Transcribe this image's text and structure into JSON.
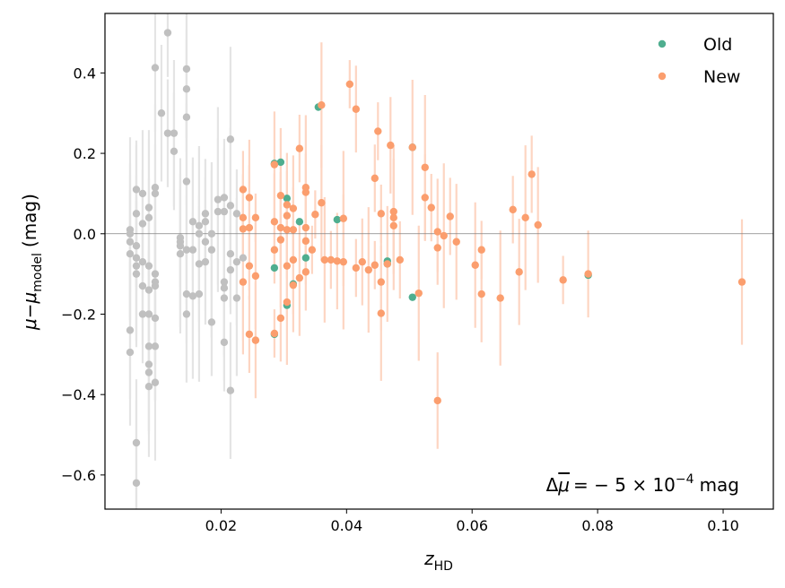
{
  "chart_data": {
    "type": "scatter",
    "xlabel": "z",
    "xlabel_sub": "HD",
    "ylabel_mu": "μ",
    "ylabel_minus": "−",
    "ylabel_model": "model",
    "ylabel_unit": "(mag)",
    "xlim": [
      0.0015,
      0.108
    ],
    "ylim": [
      -0.685,
      0.548
    ],
    "xticks": [
      0.02,
      0.04,
      0.06,
      0.08,
      0.1
    ],
    "xtick_labels": [
      "0.02",
      "0.04",
      "0.06",
      "0.08",
      "0.10"
    ],
    "yticks": [
      -0.6,
      -0.4,
      -0.2,
      0.0,
      0.2,
      0.4
    ],
    "ytick_labels": [
      "−0.6",
      "−0.4",
      "−0.2",
      "0.0",
      "0.2",
      "0.4"
    ],
    "reference_line_y": 0.0,
    "grid": false,
    "legend_position": "top-right",
    "annotation": {
      "delta": "Δ",
      "mu": "μ",
      "eq": "= − 5 × 10",
      "exp": "−4",
      "unit": "mag"
    },
    "colors": {
      "old": "#4fae8f",
      "new": "#fb9e6e",
      "low_z": "#c0c0c0",
      "new_err": "#fdd5c2",
      "low_err": "#e4e4e4",
      "zero_line": "#808080"
    },
    "series": [
      {
        "name": "Old",
        "color": "#4fae8f",
        "points": [
          [
            0.0355,
            0.315
          ],
          [
            0.0505,
            0.215
          ],
          [
            0.0285,
            -0.25
          ],
          [
            0.0505,
            -0.158
          ],
          [
            0.0465,
            -0.075
          ],
          [
            0.0465,
            -0.068
          ],
          [
            0.0785,
            -0.103
          ],
          [
            0.0285,
            0.175
          ],
          [
            0.0295,
            0.178
          ],
          [
            0.0305,
            0.088
          ],
          [
            0.0325,
            0.03
          ],
          [
            0.0385,
            0.035
          ],
          [
            0.0315,
            -0.125
          ],
          [
            0.0305,
            -0.178
          ],
          [
            0.0285,
            -0.085
          ],
          [
            0.0335,
            -0.06
          ]
        ]
      },
      {
        "name": "New",
        "color": "#fb9e6e",
        "points": [
          [
            0.0405,
            0.372
          ],
          [
            0.0415,
            0.31
          ],
          [
            0.036,
            0.32
          ],
          [
            0.045,
            0.255
          ],
          [
            0.047,
            0.22
          ],
          [
            0.0505,
            0.215
          ],
          [
            0.0325,
            0.212
          ],
          [
            0.0285,
            0.172
          ],
          [
            0.0525,
            0.165
          ],
          [
            0.0235,
            0.11
          ],
          [
            0.0245,
            0.09
          ],
          [
            0.0255,
            0.04
          ],
          [
            0.0235,
            0.04
          ],
          [
            0.0245,
            0.015
          ],
          [
            0.0235,
            0.012
          ],
          [
            0.0285,
            0.03
          ],
          [
            0.0295,
            0.095
          ],
          [
            0.0305,
            0.072
          ],
          [
            0.0315,
            0.063
          ],
          [
            0.0335,
            0.115
          ],
          [
            0.0335,
            0.103
          ],
          [
            0.036,
            0.077
          ],
          [
            0.035,
            0.048
          ],
          [
            0.0335,
            0.015
          ],
          [
            0.0305,
            0.045
          ],
          [
            0.0315,
            0.01
          ],
          [
            0.0295,
            0.015
          ],
          [
            0.0295,
            -0.015
          ],
          [
            0.0285,
            -0.04
          ],
          [
            0.0305,
            -0.08
          ],
          [
            0.0315,
            -0.065
          ],
          [
            0.0335,
            -0.095
          ],
          [
            0.0325,
            -0.11
          ],
          [
            0.0345,
            -0.04
          ],
          [
            0.0335,
            -0.018
          ],
          [
            0.0365,
            -0.065
          ],
          [
            0.0375,
            -0.065
          ],
          [
            0.0385,
            -0.068
          ],
          [
            0.0395,
            0.038
          ],
          [
            0.0445,
            0.138
          ],
          [
            0.0475,
            0.055
          ],
          [
            0.0475,
            0.04
          ],
          [
            0.0485,
            -0.065
          ],
          [
            0.0465,
            -0.075
          ],
          [
            0.0445,
            -0.078
          ],
          [
            0.0425,
            -0.07
          ],
          [
            0.0435,
            -0.09
          ],
          [
            0.0415,
            -0.085
          ],
          [
            0.0455,
            -0.12
          ],
          [
            0.0455,
            -0.198
          ],
          [
            0.0245,
            -0.08
          ],
          [
            0.0255,
            -0.105
          ],
          [
            0.0235,
            -0.12
          ],
          [
            0.0245,
            -0.25
          ],
          [
            0.0255,
            -0.265
          ],
          [
            0.0285,
            -0.248
          ],
          [
            0.0295,
            -0.21
          ],
          [
            0.0305,
            -0.17
          ],
          [
            0.0315,
            -0.128
          ],
          [
            0.0545,
            -0.415
          ],
          [
            0.0515,
            -0.148
          ],
          [
            0.0535,
            0.065
          ],
          [
            0.0545,
            0.005
          ],
          [
            0.0555,
            -0.005
          ],
          [
            0.0565,
            0.043
          ],
          [
            0.0575,
            -0.02
          ],
          [
            0.0545,
            -0.035
          ],
          [
            0.0525,
            0.09
          ],
          [
            0.0605,
            -0.078
          ],
          [
            0.0615,
            -0.04
          ],
          [
            0.0615,
            -0.15
          ],
          [
            0.0645,
            -0.16
          ],
          [
            0.0665,
            0.06
          ],
          [
            0.0675,
            -0.095
          ],
          [
            0.0685,
            0.04
          ],
          [
            0.0695,
            0.148
          ],
          [
            0.0705,
            0.022
          ],
          [
            0.0745,
            -0.115
          ],
          [
            0.0785,
            -0.1
          ],
          [
            0.103,
            -0.12
          ],
          [
            0.0455,
            0.05
          ],
          [
            0.0475,
            0.02
          ],
          [
            0.0395,
            -0.07
          ],
          [
            0.0305,
            0.01
          ]
        ]
      },
      {
        "name": "",
        "color": "#c0c0c0",
        "points": [
          [
            0.0115,
            0.5
          ],
          [
            0.0095,
            0.413
          ],
          [
            0.0145,
            0.41
          ],
          [
            0.0145,
            0.36
          ],
          [
            0.0105,
            0.3
          ],
          [
            0.0145,
            0.29
          ],
          [
            0.0115,
            0.25
          ],
          [
            0.0125,
            0.25
          ],
          [
            0.0215,
            0.235
          ],
          [
            0.0125,
            0.205
          ],
          [
            0.0145,
            0.13
          ],
          [
            0.0065,
            0.11
          ],
          [
            0.0075,
            0.1
          ],
          [
            0.0095,
            0.115
          ],
          [
            0.0095,
            0.1
          ],
          [
            0.0085,
            0.065
          ],
          [
            0.0085,
            0.04
          ],
          [
            0.0075,
            0.025
          ],
          [
            0.0065,
            0.05
          ],
          [
            0.0055,
            0.01
          ],
          [
            0.0055,
            0.0
          ],
          [
            0.0055,
            -0.02
          ],
          [
            0.0065,
            -0.03
          ],
          [
            0.0055,
            -0.05
          ],
          [
            0.0065,
            -0.06
          ],
          [
            0.0075,
            -0.07
          ],
          [
            0.0065,
            -0.08
          ],
          [
            0.0085,
            -0.08
          ],
          [
            0.0095,
            -0.1
          ],
          [
            0.0065,
            -0.1
          ],
          [
            0.0095,
            -0.12
          ],
          [
            0.0075,
            -0.13
          ],
          [
            0.0095,
            -0.13
          ],
          [
            0.0085,
            -0.14
          ],
          [
            0.0085,
            -0.2
          ],
          [
            0.0095,
            -0.21
          ],
          [
            0.0075,
            -0.2
          ],
          [
            0.0055,
            -0.24
          ],
          [
            0.0085,
            -0.28
          ],
          [
            0.0095,
            -0.28
          ],
          [
            0.0055,
            -0.295
          ],
          [
            0.0085,
            -0.325
          ],
          [
            0.0085,
            -0.345
          ],
          [
            0.0095,
            -0.37
          ],
          [
            0.0085,
            -0.38
          ],
          [
            0.0065,
            -0.52
          ],
          [
            0.0065,
            -0.62
          ],
          [
            0.0135,
            -0.01
          ],
          [
            0.0135,
            -0.02
          ],
          [
            0.0135,
            -0.03
          ],
          [
            0.0145,
            -0.04
          ],
          [
            0.0135,
            -0.05
          ],
          [
            0.0155,
            -0.04
          ],
          [
            0.0155,
            0.03
          ],
          [
            0.0165,
            0.02
          ],
          [
            0.0175,
            0.03
          ],
          [
            0.0185,
            0.0
          ],
          [
            0.0175,
            -0.02
          ],
          [
            0.0175,
            -0.07
          ],
          [
            0.0165,
            -0.075
          ],
          [
            0.0185,
            -0.04
          ],
          [
            0.0175,
            0.05
          ],
          [
            0.0195,
            0.055
          ],
          [
            0.0195,
            0.085
          ],
          [
            0.0205,
            0.09
          ],
          [
            0.0215,
            0.07
          ],
          [
            0.0225,
            0.05
          ],
          [
            0.0205,
            0.055
          ],
          [
            0.0155,
            -0.155
          ],
          [
            0.0145,
            -0.15
          ],
          [
            0.0145,
            -0.2
          ],
          [
            0.0165,
            -0.15
          ],
          [
            0.0185,
            -0.22
          ],
          [
            0.0205,
            -0.12
          ],
          [
            0.0205,
            -0.135
          ],
          [
            0.0205,
            -0.16
          ],
          [
            0.0225,
            -0.16
          ],
          [
            0.0215,
            -0.09
          ],
          [
            0.0225,
            -0.07
          ],
          [
            0.0235,
            -0.06
          ],
          [
            0.0205,
            -0.27
          ],
          [
            0.0215,
            -0.39
          ],
          [
            0.0165,
            0.0
          ],
          [
            0.0215,
            -0.05
          ]
        ]
      }
    ]
  },
  "legend": [
    {
      "label": "Old",
      "color": "#4fae8f"
    },
    {
      "label": "New",
      "color": "#fb9e6e"
    }
  ]
}
